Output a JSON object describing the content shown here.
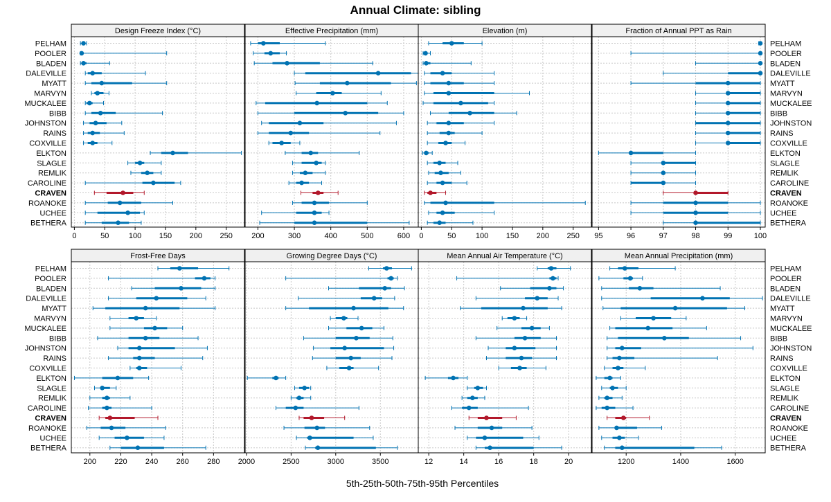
{
  "chart_data": {
    "type": "dotplot-percentile-intervals",
    "title": "Annual Climate: sibling",
    "xlabel": "5th-25th-50th-75th-95th Percentiles",
    "highlight_site": "CRAVEN",
    "colors": {
      "default": "#0072b2",
      "highlight": "#b2182b",
      "grid": "#c8c8c8",
      "strip": "#f0f0f0"
    },
    "sites": [
      "PELHAM",
      "POOLER",
      "BLADEN",
      "DALEVILLE",
      "MYATT",
      "MARVYN",
      "MUCKALEE",
      "BIBB",
      "JOHNSTON",
      "RAINS",
      "COXVILLE",
      "ELKTON",
      "SLAGLE",
      "REMLIK",
      "CAROLINE",
      "CRAVEN",
      "ROANOKE",
      "UCHEE",
      "BETHERA"
    ],
    "panels": [
      {
        "title": "Design Freeze Index (°C)",
        "xlim": [
          -5,
          280
        ],
        "ticks": [
          0,
          50,
          100,
          150,
          200,
          250
        ],
        "values": [
          [
            10,
            12,
            15,
            17,
            20
          ],
          [
            10,
            11,
            12,
            15,
            152
          ],
          [
            10,
            12,
            15,
            20,
            58
          ],
          [
            18,
            22,
            30,
            45,
            117
          ],
          [
            18,
            28,
            45,
            95,
            152
          ],
          [
            28,
            33,
            38,
            48,
            57
          ],
          [
            18,
            20,
            25,
            30,
            48
          ],
          [
            18,
            28,
            43,
            68,
            145
          ],
          [
            15,
            25,
            35,
            53,
            78
          ],
          [
            15,
            22,
            30,
            42,
            82
          ],
          [
            15,
            22,
            30,
            38,
            62
          ],
          [
            125,
            143,
            162,
            187,
            275
          ],
          [
            88,
            100,
            108,
            115,
            143
          ],
          [
            93,
            110,
            120,
            130,
            143
          ],
          [
            18,
            112,
            130,
            165,
            175
          ],
          [
            33,
            53,
            80,
            97,
            115
          ],
          [
            18,
            55,
            75,
            110,
            162
          ],
          [
            18,
            38,
            88,
            108,
            115
          ],
          [
            18,
            45,
            72,
            90,
            110
          ]
        ]
      },
      {
        "title": "Effective Precipitation (mm)",
        "xlim": [
          165,
          640
        ],
        "ticks": [
          200,
          300,
          400,
          500,
          600
        ],
        "values": [
          [
            180,
            200,
            215,
            260,
            385
          ],
          [
            187,
            218,
            235,
            260,
            278
          ],
          [
            190,
            240,
            280,
            370,
            515
          ],
          [
            300,
            330,
            530,
            620,
            640
          ],
          [
            302,
            370,
            445,
            565,
            635
          ],
          [
            305,
            360,
            405,
            430,
            538
          ],
          [
            195,
            220,
            362,
            500,
            555
          ],
          [
            200,
            300,
            440,
            530,
            600
          ],
          [
            210,
            230,
            315,
            380,
            580
          ],
          [
            200,
            230,
            290,
            340,
            535
          ],
          [
            230,
            240,
            265,
            290,
            315
          ],
          [
            275,
            320,
            345,
            365,
            478
          ],
          [
            295,
            320,
            360,
            375,
            385
          ],
          [
            295,
            315,
            330,
            350,
            385
          ],
          [
            285,
            305,
            320,
            340,
            375
          ],
          [
            318,
            350,
            365,
            380,
            420
          ],
          [
            295,
            320,
            355,
            395,
            500
          ],
          [
            210,
            305,
            355,
            375,
            395
          ],
          [
            205,
            300,
            355,
            500,
            615
          ]
        ]
      },
      {
        "title": "Elevation (m)",
        "xlim": [
          -5,
          280
        ],
        "ticks": [
          0,
          50,
          100,
          150,
          200,
          250
        ],
        "values": [
          [
            12,
            35,
            50,
            70,
            100
          ],
          [
            3,
            5,
            7,
            10,
            15
          ],
          [
            3,
            5,
            8,
            15,
            82
          ],
          [
            5,
            15,
            35,
            50,
            120
          ],
          [
            5,
            15,
            45,
            70,
            120
          ],
          [
            5,
            20,
            45,
            120,
            178
          ],
          [
            3,
            20,
            65,
            110,
            120
          ],
          [
            15,
            45,
            80,
            120,
            157
          ],
          [
            10,
            25,
            45,
            70,
            120
          ],
          [
            10,
            30,
            45,
            55,
            100
          ],
          [
            10,
            28,
            40,
            50,
            72
          ],
          [
            2,
            5,
            8,
            12,
            18
          ],
          [
            10,
            20,
            30,
            40,
            60
          ],
          [
            12,
            22,
            32,
            45,
            65
          ],
          [
            10,
            25,
            35,
            50,
            75
          ],
          [
            5,
            10,
            15,
            25,
            40
          ],
          [
            5,
            15,
            40,
            120,
            270
          ],
          [
            12,
            25,
            35,
            55,
            120
          ],
          [
            10,
            20,
            30,
            40,
            85
          ]
        ]
      },
      {
        "title": "Fraction of Annual PPT as Rain",
        "xlim": [
          94.8,
          100.15
        ],
        "ticks": [
          95,
          96,
          97,
          98,
          99,
          100
        ],
        "values": [
          [
            99.95,
            99.98,
            100,
            100,
            100
          ],
          [
            96,
            100,
            100,
            100,
            100
          ],
          [
            98,
            100,
            100,
            100,
            100
          ],
          [
            97,
            99,
            100,
            100,
            100
          ],
          [
            96,
            98,
            99,
            100,
            100
          ],
          [
            98,
            99,
            99,
            100,
            100
          ],
          [
            98,
            99,
            99,
            100,
            100
          ],
          [
            98,
            99,
            99,
            100,
            100
          ],
          [
            98,
            98,
            99,
            100,
            100
          ],
          [
            98,
            99,
            99,
            100,
            100
          ],
          [
            98,
            99,
            99,
            100,
            100
          ],
          [
            95,
            96,
            96,
            97,
            98
          ],
          [
            96,
            97,
            97,
            98,
            98
          ],
          [
            96,
            97,
            97,
            97,
            98
          ],
          [
            96,
            96,
            97,
            97,
            98
          ],
          [
            97,
            98,
            98,
            99,
            99
          ],
          [
            96,
            97,
            98,
            99,
            100
          ],
          [
            96,
            97,
            98,
            99,
            100
          ],
          [
            97,
            98,
            98,
            100,
            100
          ]
        ]
      },
      {
        "title": "Frost-Free Days",
        "xlim": [
          188,
          300
        ],
        "ticks": [
          200,
          220,
          240,
          260,
          280
        ],
        "values": [
          [
            244,
            252,
            258,
            270,
            290
          ],
          [
            212,
            268,
            274,
            278,
            281
          ],
          [
            227,
            242,
            259,
            272,
            281
          ],
          [
            212,
            230,
            243,
            263,
            275
          ],
          [
            202,
            210,
            236,
            258,
            281
          ],
          [
            213,
            225,
            230,
            235,
            243
          ],
          [
            213,
            235,
            242,
            250,
            260
          ],
          [
            205,
            225,
            236,
            245,
            270
          ],
          [
            218,
            225,
            232,
            255,
            276
          ],
          [
            212,
            228,
            232,
            242,
            273
          ],
          [
            226,
            230,
            232,
            237,
            259
          ],
          [
            190,
            208,
            218,
            228,
            238
          ],
          [
            203,
            207,
            208,
            213,
            217
          ],
          [
            200,
            208,
            211,
            213,
            226
          ],
          [
            199,
            208,
            211,
            214,
            240
          ],
          [
            206,
            210,
            213,
            229,
            244
          ],
          [
            198,
            207,
            214,
            223,
            249
          ],
          [
            206,
            216,
            224,
            235,
            248
          ],
          [
            213,
            220,
            231,
            248,
            275
          ]
        ]
      },
      {
        "title": "Growing Degree Days (°C)",
        "xlim": [
          1985,
          3925
        ],
        "ticks": [
          2000,
          2500,
          3000,
          3500
        ],
        "values": [
          [
            3370,
            3530,
            3570,
            3630,
            3850
          ],
          [
            2440,
            3580,
            3620,
            3650,
            3690
          ],
          [
            2920,
            3260,
            3550,
            3620,
            3770
          ],
          [
            2580,
            3280,
            3430,
            3520,
            3660
          ],
          [
            2440,
            2700,
            3200,
            3590,
            3760
          ],
          [
            2940,
            3000,
            3090,
            3130,
            3250
          ],
          [
            2920,
            3120,
            3290,
            3410,
            3540
          ],
          [
            2640,
            3000,
            3230,
            3380,
            3640
          ],
          [
            2750,
            2940,
            3100,
            3540,
            3650
          ],
          [
            2740,
            3000,
            3170,
            3280,
            3630
          ],
          [
            2900,
            3040,
            3150,
            3200,
            3480
          ],
          [
            2010,
            2290,
            2330,
            2360,
            2440
          ],
          [
            2540,
            2590,
            2650,
            2700,
            2720
          ],
          [
            2500,
            2560,
            2590,
            2640,
            2720
          ],
          [
            2330,
            2440,
            2550,
            2640,
            3260
          ],
          [
            2590,
            2640,
            2730,
            2870,
            3100
          ],
          [
            2420,
            2650,
            2790,
            2880,
            3380
          ],
          [
            2560,
            2680,
            2710,
            3200,
            3420
          ],
          [
            2660,
            2770,
            2800,
            3450,
            3690
          ]
        ]
      },
      {
        "title": "Mean Annual Air Temperature (°C)",
        "xlim": [
          11.4,
          21.3
        ],
        "ticks": [
          12,
          14,
          16,
          18,
          20
        ],
        "values": [
          [
            18.2,
            18.8,
            19.0,
            19.3,
            20.1
          ],
          [
            13.6,
            18.9,
            19.1,
            19.3,
            19.4
          ],
          [
            16.1,
            17.8,
            18.9,
            19.3,
            19.7
          ],
          [
            14.7,
            17.5,
            18.2,
            18.8,
            19.4
          ],
          [
            13.8,
            15.0,
            17.4,
            18.8,
            19.6
          ],
          [
            16.2,
            16.5,
            16.9,
            17.2,
            17.6
          ],
          [
            15.9,
            17.3,
            17.9,
            18.4,
            18.9
          ],
          [
            14.7,
            16.9,
            17.5,
            18.4,
            19.3
          ],
          [
            15.4,
            16.4,
            16.9,
            18.1,
            19.3
          ],
          [
            15.3,
            16.4,
            17.3,
            17.9,
            19.3
          ],
          [
            16.0,
            16.7,
            17.2,
            17.6,
            18.7
          ],
          [
            11.8,
            13.1,
            13.4,
            13.7,
            14.2
          ],
          [
            14.2,
            14.6,
            14.8,
            15.1,
            15.3
          ],
          [
            13.9,
            14.2,
            14.5,
            14.8,
            15.2
          ],
          [
            13.3,
            13.9,
            14.3,
            14.8,
            17.7
          ],
          [
            14.3,
            14.8,
            15.3,
            16.2,
            17.0
          ],
          [
            13.5,
            14.8,
            15.6,
            16.2,
            17.9
          ],
          [
            14.2,
            14.7,
            15.2,
            17.4,
            18.3
          ],
          [
            14.7,
            15.2,
            15.5,
            18.0,
            19.6
          ]
        ]
      },
      {
        "title": "Mean Annual Precipitation (mm)",
        "xlim": [
          1075,
          1710
        ],
        "ticks": [
          1200,
          1400,
          1600
        ],
        "values": [
          [
            1140,
            1170,
            1195,
            1245,
            1380
          ],
          [
            1100,
            1190,
            1215,
            1225,
            1260
          ],
          [
            1110,
            1210,
            1250,
            1300,
            1545
          ],
          [
            1110,
            1290,
            1480,
            1580,
            1700
          ],
          [
            1115,
            1180,
            1380,
            1570,
            1635
          ],
          [
            1180,
            1235,
            1300,
            1365,
            1420
          ],
          [
            1140,
            1160,
            1280,
            1370,
            1495
          ],
          [
            1130,
            1170,
            1340,
            1430,
            1620
          ],
          [
            1130,
            1160,
            1185,
            1255,
            1665
          ],
          [
            1130,
            1150,
            1175,
            1230,
            1535
          ],
          [
            1120,
            1150,
            1170,
            1190,
            1270
          ],
          [
            1090,
            1120,
            1140,
            1150,
            1180
          ],
          [
            1110,
            1140,
            1150,
            1170,
            1200
          ],
          [
            1100,
            1120,
            1130,
            1150,
            1185
          ],
          [
            1090,
            1110,
            1130,
            1160,
            1225
          ],
          [
            1130,
            1160,
            1190,
            1200,
            1285
          ],
          [
            1100,
            1160,
            1165,
            1240,
            1330
          ],
          [
            1110,
            1150,
            1175,
            1195,
            1245
          ],
          [
            1120,
            1160,
            1185,
            1450,
            1550
          ]
        ]
      }
    ]
  }
}
